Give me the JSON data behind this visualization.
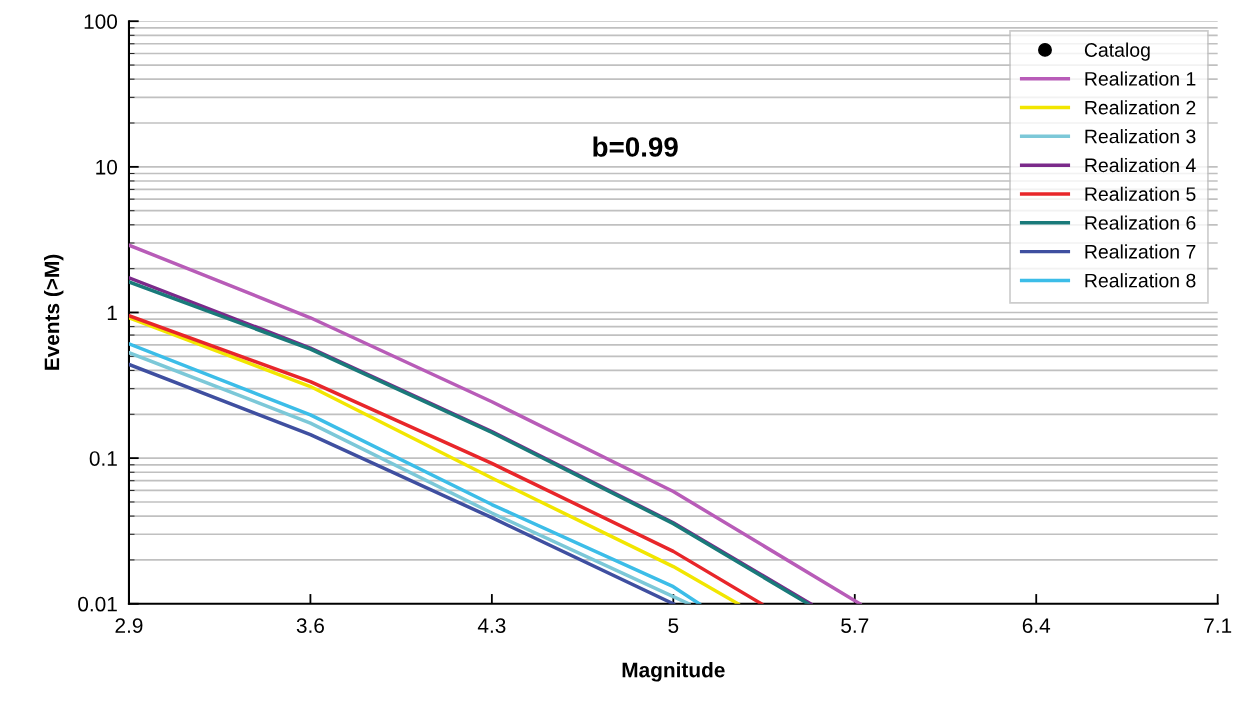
{
  "chart_data": {
    "type": "line",
    "xlabel": "Magnitude",
    "ylabel": "Events (>M)",
    "log": "y",
    "grid": "y",
    "legend": "top right",
    "xlim": [
      2.9,
      7.1
    ],
    "xticks": [
      2.9,
      3.6,
      4.3,
      5,
      5.7,
      6.4,
      7.1
    ],
    "ylim": [
      0.01,
      100
    ],
    "yticks": [
      0.01,
      0.1,
      1,
      10,
      100
    ],
    "annotations": [
      "b=0.99"
    ],
    "series": [
      {
        "name": "Catalog",
        "type": "scatter",
        "marker": "circle",
        "color": "#000000"
      },
      {
        "name": "Realization 1",
        "color": "#b85cb8",
        "x": [
          2.9,
          3.6,
          4.3,
          5.0,
          5.72
        ],
        "values": [
          2.9,
          0.92,
          0.244,
          0.059,
          0.01
        ]
      },
      {
        "name": "Realization 2",
        "color": "#f2e600",
        "x": [
          2.9,
          3.6,
          4.3,
          5.0,
          5.25
        ],
        "values": [
          0.92,
          0.31,
          0.073,
          0.018,
          0.01
        ]
      },
      {
        "name": "Realization 3",
        "color": "#7cc8d8",
        "x": [
          2.9,
          3.6,
          4.3,
          5.0,
          5.06
        ],
        "values": [
          0.53,
          0.174,
          0.042,
          0.0112,
          0.01
        ]
      },
      {
        "name": "Realization 4",
        "color": "#7b2a8a",
        "x": [
          2.9,
          3.6,
          4.3,
          5.0,
          5.53
        ],
        "values": [
          1.73,
          0.57,
          0.152,
          0.036,
          0.01
        ]
      },
      {
        "name": "Realization 5",
        "color": "#e8262a",
        "x": [
          2.9,
          3.6,
          4.3,
          5.0,
          5.34
        ],
        "values": [
          0.95,
          0.335,
          0.092,
          0.0229,
          0.01
        ]
      },
      {
        "name": "Realization 6",
        "color": "#1a7a7a",
        "x": [
          2.9,
          3.6,
          4.3,
          5.0,
          5.52
        ],
        "values": [
          1.62,
          0.56,
          0.15,
          0.0355,
          0.01
        ]
      },
      {
        "name": "Realization 7",
        "color": "#3f4fa0",
        "x": [
          2.9,
          3.6,
          4.3,
          5.0
        ],
        "values": [
          0.44,
          0.145,
          0.039,
          0.01
        ]
      },
      {
        "name": "Realization 8",
        "color": "#3cbde8",
        "x": [
          2.9,
          3.6,
          4.3,
          5.0,
          5.1
        ],
        "values": [
          0.61,
          0.198,
          0.048,
          0.0131,
          0.01
        ]
      }
    ]
  }
}
